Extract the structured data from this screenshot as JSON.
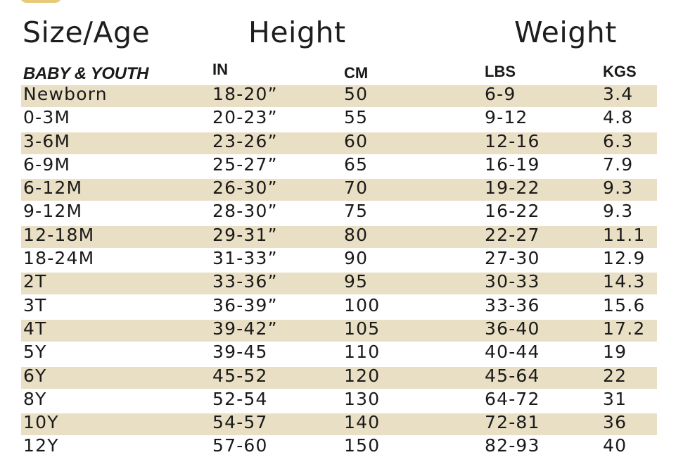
{
  "headers": {
    "size_age": "Size/Age",
    "height": "Height",
    "weight": "Weight"
  },
  "subheaders": {
    "group": "BABY & YOUTH",
    "in": "IN",
    "cm": "CM",
    "lbs": "LBS",
    "kgs": "KGS"
  },
  "colors": {
    "row_shade": "#e9dfc4",
    "text": "#1a1a1a",
    "accent": "#e8c978"
  },
  "rows": [
    {
      "size": "Newborn",
      "in": "18-20”",
      "cm": "50",
      "lbs": "6-9",
      "kgs": "3.4"
    },
    {
      "size": "0-3M",
      "in": "20-23”",
      "cm": "55",
      "lbs": "9-12",
      "kgs": "4.8"
    },
    {
      "size": "3-6M",
      "in": "23-26”",
      "cm": "60",
      "lbs": "12-16",
      "kgs": "6.3"
    },
    {
      "size": "6-9M",
      "in": "25-27”",
      "cm": "65",
      "lbs": "16-19",
      "kgs": "7.9"
    },
    {
      "size": "6-12M",
      "in": "26-30”",
      "cm": "70",
      "lbs": "19-22",
      "kgs": "9.3"
    },
    {
      "size": "9-12M",
      "in": "28-30”",
      "cm": "75",
      "lbs": "16-22",
      "kgs": "9.3"
    },
    {
      "size": "12-18M",
      "in": "29-31”",
      "cm": "80",
      "lbs": "22-27",
      "kgs": "11.1"
    },
    {
      "size": "18-24M",
      "in": "31-33”",
      "cm": "90",
      "lbs": "27-30",
      "kgs": "12.9"
    },
    {
      "size": "2T",
      "in": "33-36”",
      "cm": "95",
      "lbs": "30-33",
      "kgs": "14.3"
    },
    {
      "size": "3T",
      "in": "36-39”",
      "cm": "100",
      "lbs": "33-36",
      "kgs": "15.6"
    },
    {
      "size": "4T",
      "in": "39-42”",
      "cm": "105",
      "lbs": "36-40",
      "kgs": "17.2"
    },
    {
      "size": "5Y",
      "in": "39-45",
      "cm": "110",
      "lbs": "40-44",
      "kgs": "19"
    },
    {
      "size": "6Y",
      "in": "45-52",
      "cm": "120",
      "lbs": "45-64",
      "kgs": "22"
    },
    {
      "size": "8Y",
      "in": "52-54",
      "cm": "130",
      "lbs": "64-72",
      "kgs": "31"
    },
    {
      "size": "10Y",
      "in": "54-57",
      "cm": "140",
      "lbs": "72-81",
      "kgs": "36"
    },
    {
      "size": "12Y",
      "in": "57-60",
      "cm": "150",
      "lbs": "82-93",
      "kgs": "40"
    }
  ]
}
